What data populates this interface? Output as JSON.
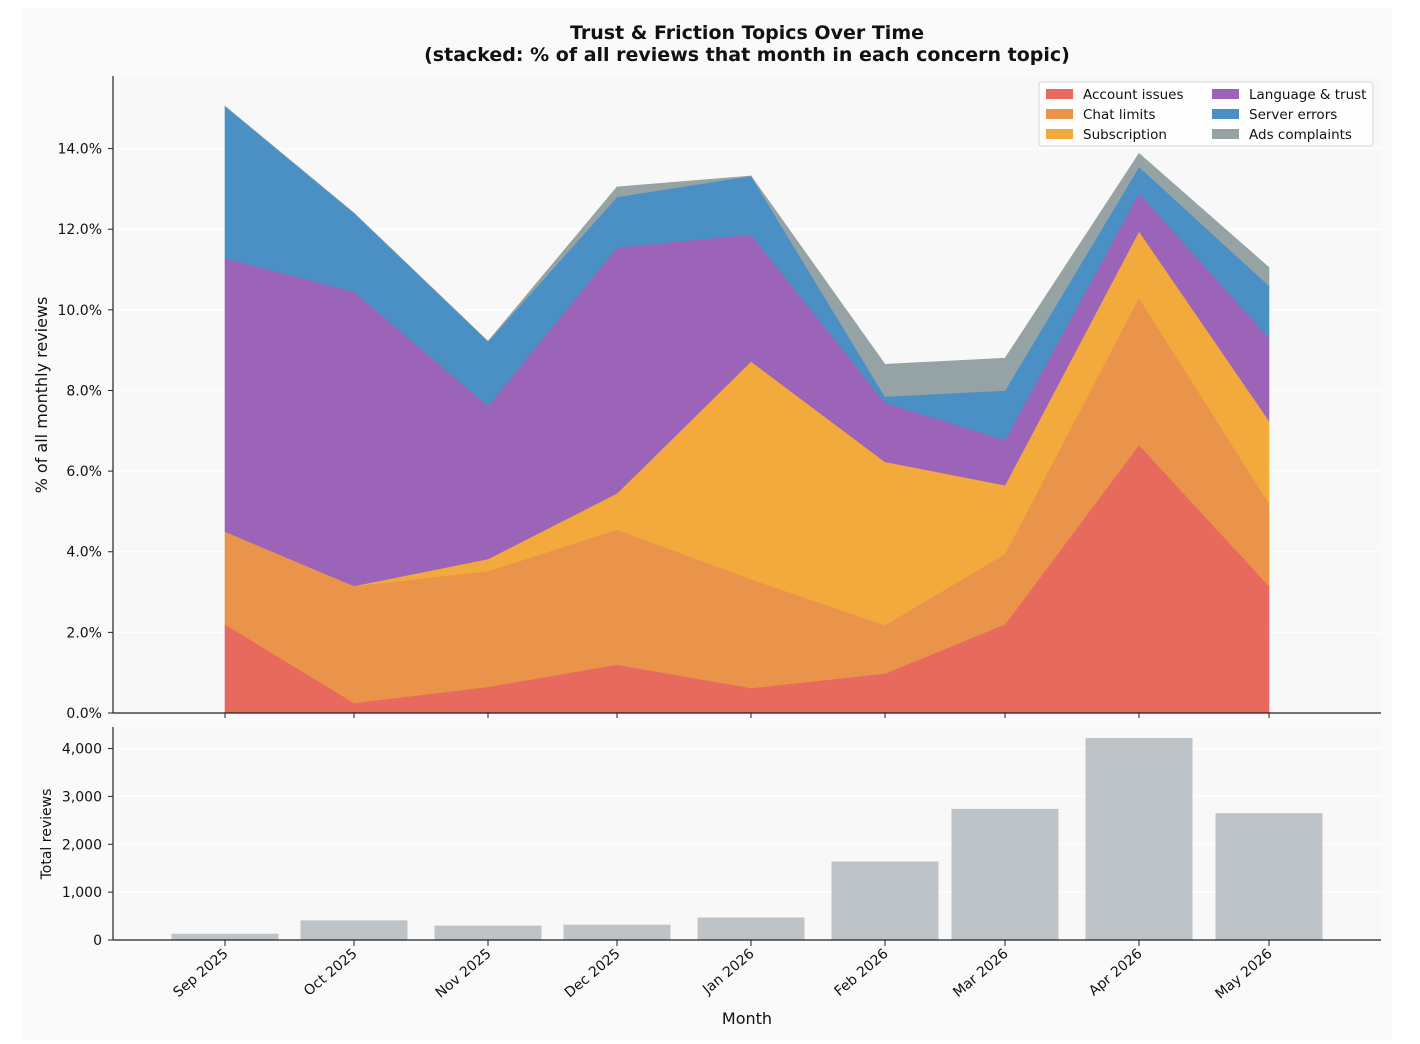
{
  "chart_data": [
    {
      "type": "area",
      "stacked": true,
      "title": "Trust & Friction Topics Over Time",
      "subtitle": "(stacked: % of all reviews that month in each concern topic)",
      "ylabel": "% of all monthly reviews",
      "xlabel": "",
      "ylim": [
        0,
        15.8
      ],
      "yticks": [
        0,
        2,
        4,
        6,
        8,
        10,
        12,
        14
      ],
      "ytick_labels": [
        "0.0%",
        "2.0%",
        "4.0%",
        "6.0%",
        "8.0%",
        "10.0%",
        "12.0%",
        "14.0%"
      ],
      "grid": "horizontal",
      "legend": {
        "placement": "top-right",
        "columns": 2
      },
      "categories": [
        "Sep 2025",
        "Oct 2025",
        "Nov 2025",
        "Dec 2025",
        "Jan 2026",
        "Feb 2026",
        "Mar 2026",
        "Apr 2026",
        "May 2026"
      ],
      "series": [
        {
          "name": "Account issues",
          "color": "#e8695d",
          "values": [
            2.2,
            0.25,
            0.65,
            1.2,
            0.62,
            0.98,
            2.2,
            6.65,
            3.15
          ]
        },
        {
          "name": "Chat limits",
          "color": "#e9944a",
          "values": [
            2.3,
            2.9,
            2.87,
            3.35,
            2.7,
            1.2,
            1.75,
            3.65,
            2.05
          ]
        },
        {
          "name": "Subscription",
          "color": "#f2aa3c",
          "values": [
            0,
            0,
            0.3,
            0.9,
            5.4,
            4.05,
            1.7,
            1.65,
            2.05
          ]
        },
        {
          "name": "Language & trust",
          "color": "#9b64b8",
          "values": [
            6.78,
            7.3,
            3.8,
            6.1,
            3.15,
            1.47,
            1.12,
            0.95,
            2.05
          ]
        },
        {
          "name": "Server errors",
          "color": "#4a90c4",
          "values": [
            3.77,
            1.95,
            1.6,
            1.25,
            1.45,
            0.15,
            1.23,
            0.65,
            1.3
          ]
        },
        {
          "name": "Ads complaints",
          "color": "#95a3a5",
          "values": [
            0,
            0,
            0,
            0.25,
            0,
            0.8,
            0.8,
            0.33,
            0.45
          ]
        }
      ]
    },
    {
      "type": "bar",
      "ylabel": "Total reviews",
      "xlabel": "Month",
      "ylim": [
        0,
        4450
      ],
      "yticks": [
        0,
        1000,
        2000,
        3000,
        4000
      ],
      "ytick_labels": [
        "0",
        "1,000",
        "2,000",
        "3,000",
        "4,000"
      ],
      "grid": "horizontal",
      "bar_color": "#bdc3c7",
      "categories": [
        "Sep 2025",
        "Oct 2025",
        "Nov 2025",
        "Dec 2025",
        "Jan 2026",
        "Feb 2026",
        "Mar 2026",
        "Apr 2026",
        "May 2026"
      ],
      "values": [
        130,
        410,
        300,
        320,
        470,
        1640,
        2740,
        4220,
        2650
      ]
    }
  ],
  "colors": {
    "axes_background": "#f8f8f8",
    "figure_background": "#fafafa",
    "grid": "#ffffff",
    "spine": "#222222"
  }
}
